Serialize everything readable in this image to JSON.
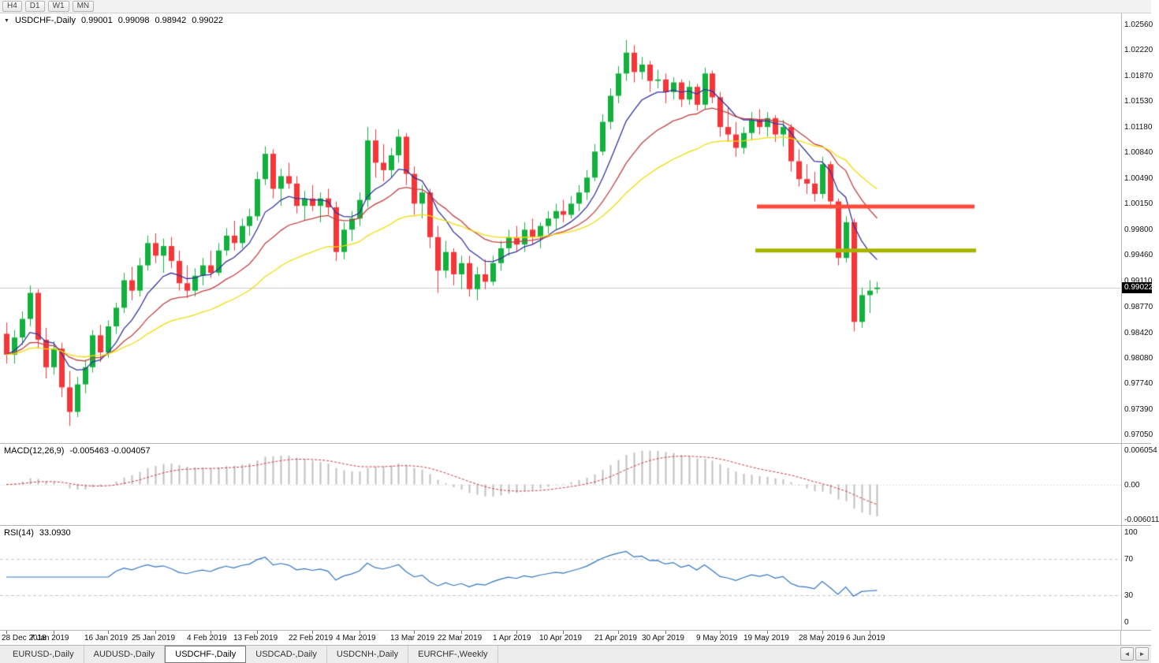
{
  "icons": {
    "collapse": "▼",
    "scroll_left": "◄",
    "scroll_right": "►"
  },
  "toolbar": {
    "timeframes": [
      "H4",
      "D1",
      "W1",
      "MN"
    ]
  },
  "chart": {
    "symbol_label": "USDCHF-,Daily",
    "ohlc": {
      "open": "0.99001",
      "high": "0.99098",
      "low": "0.98942",
      "close": "0.99022"
    },
    "current_price": "0.99022",
    "price_axis": [
      "1.02560",
      "1.02220",
      "1.01870",
      "1.01530",
      "1.01180",
      "1.00840",
      "1.00490",
      "1.00150",
      "0.99800",
      "0.99460",
      "0.99110",
      "0.98770",
      "0.98420",
      "0.98080",
      "0.97740",
      "0.97390",
      "0.97050"
    ]
  },
  "macd": {
    "title": "MACD(12,26,9)",
    "values": "-0.005463 -0.004057",
    "params": [
      12,
      26,
      9
    ],
    "axis": [
      "0.006054",
      "0.00",
      "-0.006011"
    ]
  },
  "rsi": {
    "title": "RSI(14)",
    "value": "33.0930",
    "period": 14,
    "levels": [
      70,
      30
    ],
    "axis": [
      "100",
      "70",
      "30",
      "0"
    ]
  },
  "tabs": {
    "items": [
      "EURUSD-,Daily",
      "AUDUSD-,Daily",
      "USDCHF-,Daily",
      "USDCAD-,Daily",
      "USDCNH-,Daily",
      "EURCHF-,Weekly"
    ],
    "active_index": 2
  },
  "chart_data": {
    "type": "candlestick",
    "symbol": "USDCHF",
    "timeframe": "Daily",
    "ylim": {
      "max": 1.02708,
      "min": 0.96931
    },
    "x_margin": 8,
    "bar_spacing": 9.95,
    "colors": {
      "bull": "#12b13e",
      "bear": "#f63538",
      "bid_line": "#c9c9c9",
      "macd_hist": "#bfbfbf",
      "macd_signal": "#cc3a3a",
      "rsi_line": "#2f74c0",
      "level_dash": "#c8c8c8",
      "zero_dash": "#e3e3e3"
    },
    "overlays": [
      {
        "name": "ma-fast-blue",
        "period": 8,
        "color": "#3333a0"
      },
      {
        "name": "ma-mid-red",
        "period": 17,
        "color": "#c24040"
      },
      {
        "name": "ma-slow-yellow",
        "period": 34,
        "color": "#f0dc06"
      }
    ],
    "hlines": [
      {
        "name": "resistance-line",
        "price": 1.0011,
        "x1": 960,
        "x2": 1236,
        "color": "#ff4a3c",
        "width": 5
      },
      {
        "name": "support-line",
        "price": 0.9952,
        "x1": 958,
        "x2": 1238,
        "color": "#a6b400",
        "width": 5
      }
    ],
    "candles": [
      [
        0.984,
        0.9855,
        0.98,
        0.9812
      ],
      [
        0.9812,
        0.9845,
        0.98,
        0.9835
      ],
      [
        0.9835,
        0.987,
        0.9825,
        0.986
      ],
      [
        0.986,
        0.9905,
        0.985,
        0.9895
      ],
      [
        0.9895,
        0.99,
        0.982,
        0.9832
      ],
      [
        0.9832,
        0.9848,
        0.978,
        0.9795
      ],
      [
        0.9795,
        0.983,
        0.9785,
        0.982
      ],
      [
        0.982,
        0.9828,
        0.9755,
        0.9768
      ],
      [
        0.9768,
        0.979,
        0.9716,
        0.9735
      ],
      [
        0.9735,
        0.9782,
        0.9728,
        0.9772
      ],
      [
        0.9772,
        0.9805,
        0.976,
        0.9795
      ],
      [
        0.9795,
        0.9845,
        0.9788,
        0.9838
      ],
      [
        0.9838,
        0.9852,
        0.9802,
        0.9815
      ],
      [
        0.9815,
        0.9858,
        0.9808,
        0.985
      ],
      [
        0.985,
        0.9882,
        0.984,
        0.9875
      ],
      [
        0.9875,
        0.9922,
        0.9868,
        0.9912
      ],
      [
        0.9912,
        0.993,
        0.9885,
        0.9898
      ],
      [
        0.9898,
        0.9942,
        0.989,
        0.9932
      ],
      [
        0.9932,
        0.9972,
        0.9925,
        0.9962
      ],
      [
        0.9962,
        0.9975,
        0.9935,
        0.9945
      ],
      [
        0.9945,
        0.9968,
        0.9922,
        0.9958
      ],
      [
        0.9958,
        0.997,
        0.9928,
        0.9938
      ],
      [
        0.9938,
        0.9952,
        0.9898,
        0.9908
      ],
      [
        0.9908,
        0.9932,
        0.9888,
        0.9898
      ],
      [
        0.9898,
        0.9928,
        0.989,
        0.9918
      ],
      [
        0.9918,
        0.9942,
        0.9905,
        0.9932
      ],
      [
        0.9932,
        0.9952,
        0.9915,
        0.9922
      ],
      [
        0.9922,
        0.9962,
        0.9918,
        0.9952
      ],
      [
        0.9952,
        0.9982,
        0.9945,
        0.9972
      ],
      [
        0.9972,
        0.9992,
        0.9952,
        0.9962
      ],
      [
        0.9962,
        0.9995,
        0.9955,
        0.9985
      ],
      [
        0.9985,
        1.0008,
        0.9972,
        0.9998
      ],
      [
        0.9998,
        1.0058,
        0.9992,
        1.0048
      ],
      [
        1.0048,
        1.0092,
        1.004,
        1.0082
      ],
      [
        1.0082,
        1.0088,
        1.0022,
        1.0035
      ],
      [
        1.0035,
        1.0062,
        1.0012,
        1.0052
      ],
      [
        1.0052,
        1.007,
        1.0035,
        1.0042
      ],
      [
        1.0042,
        1.0052,
        1.0002,
        1.0012
      ],
      [
        1.0012,
        1.0032,
        0.9992,
        1.0022
      ],
      [
        1.0022,
        1.004,
        1.0005,
        1.0012
      ],
      [
        1.0012,
        1.003,
        0.999,
        1.0022
      ],
      [
        1.0022,
        1.0035,
        1.0,
        1.001
      ],
      [
        1.001,
        1.0018,
        0.9938,
        0.995
      ],
      [
        0.995,
        0.999,
        0.994,
        0.998
      ],
      [
        0.998,
        1.0005,
        0.9965,
        0.9995
      ],
      [
        0.9995,
        1.003,
        0.9985,
        1.002
      ],
      [
        1.002,
        1.0118,
        1.001,
        1.01
      ],
      [
        1.01,
        1.0115,
        1.005,
        1.007
      ],
      [
        1.007,
        1.0095,
        1.0045,
        1.006
      ],
      [
        1.006,
        1.009,
        1.005,
        1.008
      ],
      [
        1.008,
        1.0115,
        1.007,
        1.0105
      ],
      [
        1.0105,
        1.011,
        1.004,
        1.0055
      ],
      [
        1.0055,
        1.0065,
        1.0,
        1.0015
      ],
      [
        1.0015,
        1.004,
        0.9995,
        1.003
      ],
      [
        1.003,
        1.0035,
        0.9955,
        0.997
      ],
      [
        0.997,
        0.9985,
        0.9895,
        0.9925
      ],
      [
        0.9925,
        0.9965,
        0.9915,
        0.995
      ],
      [
        0.995,
        0.9955,
        0.9905,
        0.992
      ],
      [
        0.992,
        0.9945,
        0.99,
        0.9935
      ],
      [
        0.9935,
        0.9945,
        0.989,
        0.99
      ],
      [
        0.99,
        0.993,
        0.9885,
        0.992
      ],
      [
        0.992,
        0.994,
        0.99,
        0.991
      ],
      [
        0.991,
        0.9945,
        0.9905,
        0.9935
      ],
      [
        0.9935,
        0.9965,
        0.9925,
        0.9955
      ],
      [
        0.9955,
        0.998,
        0.9945,
        0.997
      ],
      [
        0.997,
        0.9985,
        0.995,
        0.996
      ],
      [
        0.996,
        0.999,
        0.995,
        0.998
      ],
      [
        0.998,
        0.9995,
        0.996,
        0.997
      ],
      [
        0.997,
        0.999,
        0.9955,
        0.9985
      ],
      [
        0.9985,
        1.0005,
        0.9975,
        0.9995
      ],
      [
        0.9995,
        1.0015,
        0.998,
        1.0005
      ],
      [
        1.0005,
        1.002,
        0.999,
        1.0
      ],
      [
        1.0,
        1.0025,
        0.9995,
        1.0015
      ],
      [
        1.0015,
        1.004,
        1.0005,
        1.003
      ],
      [
        1.003,
        1.006,
        1.002,
        1.005
      ],
      [
        1.005,
        1.0095,
        1.0045,
        1.0085
      ],
      [
        1.0085,
        1.0135,
        1.008,
        1.0125
      ],
      [
        1.0125,
        1.017,
        1.0115,
        1.016
      ],
      [
        1.016,
        1.02,
        1.015,
        1.019
      ],
      [
        1.019,
        1.0235,
        1.018,
        1.0218
      ],
      [
        1.0218,
        1.0228,
        1.0178,
        1.0192
      ],
      [
        1.0192,
        1.0212,
        1.0182,
        1.0202
      ],
      [
        1.0202,
        1.0207,
        1.0165,
        1.018
      ],
      [
        1.018,
        1.0195,
        1.017,
        1.0182
      ],
      [
        1.0182,
        1.019,
        1.015,
        1.0165
      ],
      [
        1.0165,
        1.0185,
        1.0155,
        1.0178
      ],
      [
        1.0178,
        1.0182,
        1.0145,
        1.0155
      ],
      [
        1.0155,
        1.018,
        1.0148,
        1.0172
      ],
      [
        1.0172,
        1.0176,
        1.014,
        1.0148
      ],
      [
        1.0148,
        1.0198,
        1.0142,
        1.019
      ],
      [
        1.019,
        1.0194,
        1.015,
        1.0158
      ],
      [
        1.0158,
        1.0165,
        1.0105,
        1.0118
      ],
      [
        1.0118,
        1.0145,
        1.0098,
        1.0108
      ],
      [
        1.0108,
        1.0125,
        1.0078,
        1.009
      ],
      [
        1.009,
        1.0118,
        1.0082,
        1.011
      ],
      [
        1.011,
        1.0138,
        1.01,
        1.0128
      ],
      [
        1.0128,
        1.0142,
        1.0108,
        1.0118
      ],
      [
        1.0118,
        1.0138,
        1.0105,
        1.013
      ],
      [
        1.013,
        1.0134,
        1.0098,
        1.0108
      ],
      [
        1.0108,
        1.0128,
        1.0092,
        1.0118
      ],
      [
        1.0118,
        1.0122,
        1.0058,
        1.0072
      ],
      [
        1.0072,
        1.0088,
        1.0038,
        1.0048
      ],
      [
        1.0048,
        1.0068,
        1.0028,
        1.0042
      ],
      [
        1.0042,
        1.0058,
        1.0018,
        1.0028
      ],
      [
        1.0028,
        1.0078,
        1.0022,
        1.0068
      ],
      [
        1.0068,
        1.0072,
        1.0008,
        1.0018
      ],
      [
        1.0018,
        1.0022,
        0.9932,
        0.9942
      ],
      [
        0.9942,
        0.9998,
        0.9936,
        0.999
      ],
      [
        0.999,
        0.9995,
        0.9843,
        0.9856
      ],
      [
        0.9856,
        0.9902,
        0.9848,
        0.9892
      ],
      [
        0.9892,
        0.9912,
        0.9868,
        0.9898
      ],
      [
        0.99001,
        0.99098,
        0.98942,
        0.99022
      ]
    ],
    "x_labels": [
      [
        "28 Dec 2018",
        0
      ],
      [
        "7 Jan 2019",
        6
      ],
      [
        "16 Jan 2019",
        13
      ],
      [
        "25 Jan 2019",
        19
      ],
      [
        "4 Feb 2019",
        26
      ],
      [
        "13 Feb 2019",
        32
      ],
      [
        "22 Feb 2019",
        39
      ],
      [
        "4 Mar 2019",
        45
      ],
      [
        "13 Mar 2019",
        52
      ],
      [
        "22 Mar 2019",
        58
      ],
      [
        "1 Apr 2019",
        65
      ],
      [
        "10 Apr 2019",
        71
      ],
      [
        "21 Apr 2019",
        78
      ],
      [
        "30 Apr 2019",
        84
      ],
      [
        "9 May 2019",
        91
      ],
      [
        "19 May 2019",
        97
      ],
      [
        "28 May 2019",
        104
      ],
      [
        "6 Jun 2019",
        110
      ]
    ]
  }
}
